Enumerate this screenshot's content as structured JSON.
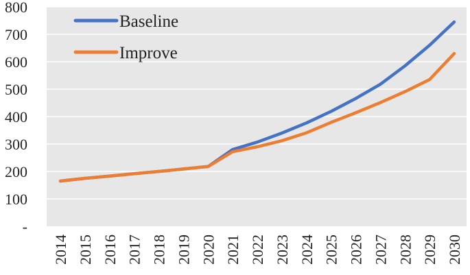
{
  "chart_data": {
    "type": "line",
    "x": [
      "2014",
      "2015",
      "2016",
      "2017",
      "2018",
      "2019",
      "2020",
      "2021",
      "2022",
      "2023",
      "2024",
      "2025",
      "2026",
      "2027",
      "2028",
      "2029",
      "2030"
    ],
    "yticks": [
      "-",
      "100",
      "200",
      "300",
      "400",
      "500",
      "600",
      "700",
      "800"
    ],
    "ylim": [
      0,
      800
    ],
    "grid": true,
    "legend_position": "top-left",
    "series": [
      {
        "name": "Baseline",
        "color": "#4472C4",
        "values": [
          165,
          175,
          183,
          192,
          200,
          209,
          218,
          280,
          307,
          340,
          377,
          419,
          466,
          518,
          585,
          660,
          745
        ]
      },
      {
        "name": "Improve",
        "color": "#ED7D31",
        "values": [
          165,
          175,
          183,
          192,
          200,
          209,
          218,
          272,
          290,
          312,
          341,
          379,
          414,
          451,
          491,
          535,
          630
        ]
      }
    ]
  }
}
